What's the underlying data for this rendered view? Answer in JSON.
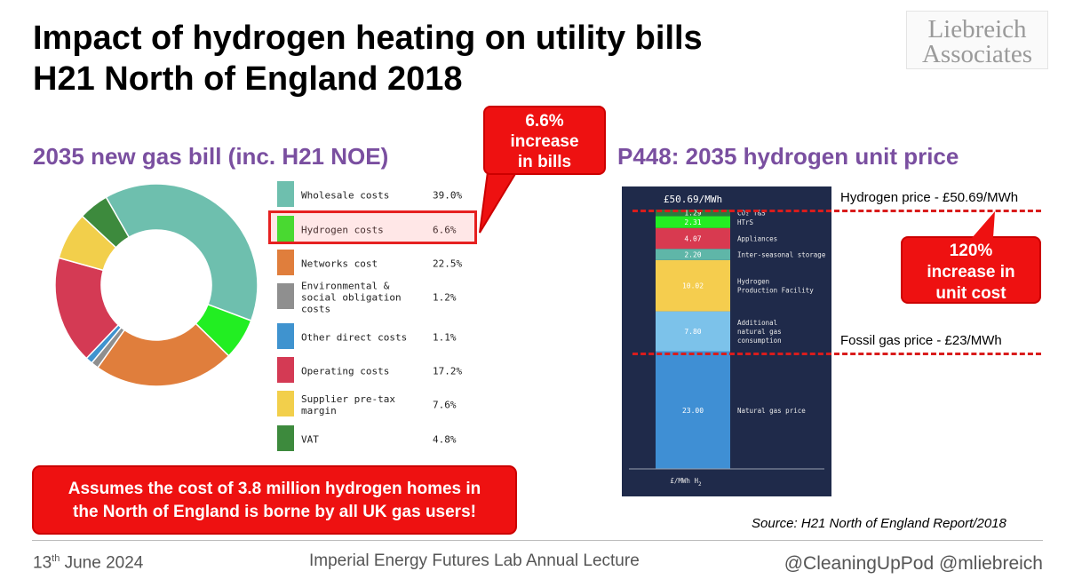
{
  "header": {
    "title_line1": "Impact of hydrogen heating on utility bills",
    "title_line2": "H21 North of England 2018",
    "logo_line1": "Liebreich",
    "logo_line2": "Associates"
  },
  "left": {
    "subtitle": "2035 new gas bill (inc. H21 NOE)",
    "callout_bills": [
      "6.6%",
      "increase",
      "in bills"
    ],
    "assumption_line1": "Assumes the cost of 3.8 million hydrogen homes in",
    "assumption_line2": "the North of England is borne by all UK gas users!"
  },
  "right": {
    "subtitle": "P448: 2035 hydrogen unit price",
    "hydrogen_price_label": "Hydrogen price - £50.69/MWh",
    "fossil_price_label": "Fossil gas price - £23/MWh",
    "callout_unit": [
      "120%",
      "increase in",
      "unit cost"
    ],
    "source": "Source: H21 North of England Report/2018"
  },
  "footer": {
    "date_day": "13",
    "date_sup": "th",
    "date_rest": " June 2024",
    "event": "Imperial Energy Futures Lab Annual Lecture",
    "handles": "@CleaningUpPod @mliebreich"
  },
  "chart_data": [
    {
      "type": "pie",
      "subtype": "donut",
      "categories": [
        "Wholesale costs",
        "Hydrogen costs",
        "Networks cost",
        "Environmental & social obligation costs",
        "Other direct costs",
        "Operating costs",
        "Supplier pre-tax margin",
        "VAT"
      ],
      "legend_labels": [
        "Wholesale costs",
        "Hydrogen costs",
        "Networks cost",
        "Environmental &\nsocial obligation\ncosts",
        "Other direct costs",
        "Operating costs",
        "Supplier pre-tax\nmargin",
        "VAT"
      ],
      "values": [
        39.0,
        6.6,
        22.5,
        1.2,
        1.1,
        17.2,
        7.6,
        4.8
      ],
      "value_labels": [
        "39.0%",
        "6.6%",
        "22.5%",
        "1.2%",
        "1.1%",
        "17.2%",
        "7.6%",
        "4.8%"
      ],
      "colors": [
        "#6ebfae",
        "#22ee22",
        "#e07e3c",
        "#8f8f8f",
        "#3f93cf",
        "#d43a54",
        "#f2cf4b",
        "#3d8a3d"
      ],
      "highlight": "Hydrogen costs",
      "legend_position": "right"
    },
    {
      "type": "bar",
      "subtype": "stacked",
      "total_label": "£50.69/MWh",
      "x_label": "£/MWh H",
      "x_label_sub": "2",
      "segments": [
        {
          "name": "Natural gas price",
          "value": 23.0,
          "label": "23.00",
          "color": "#3f8fd4"
        },
        {
          "name": "Additional\nnatural gas\nconsumption",
          "value": 7.8,
          "label": "7.80",
          "color": "#7cc2ea"
        },
        {
          "name": "Hydrogen\nProduction Facility",
          "value": 10.02,
          "label": "10.02",
          "color": "#f5cd4e"
        },
        {
          "name": "Inter-seasonal storage",
          "value": 2.2,
          "label": "2.20",
          "color": "#5fb6a8"
        },
        {
          "name": "Appliances",
          "value": 4.07,
          "label": "4.07",
          "color": "#d83a50"
        },
        {
          "name": "HTrS",
          "value": 2.31,
          "label": "2.31",
          "color": "#22ee22"
        },
        {
          "name": "CO₂ T&S",
          "value": 1.29,
          "label": "1.29",
          "color": "#2a7a40"
        }
      ],
      "reference_lines": [
        50.69,
        23.0
      ]
    }
  ]
}
